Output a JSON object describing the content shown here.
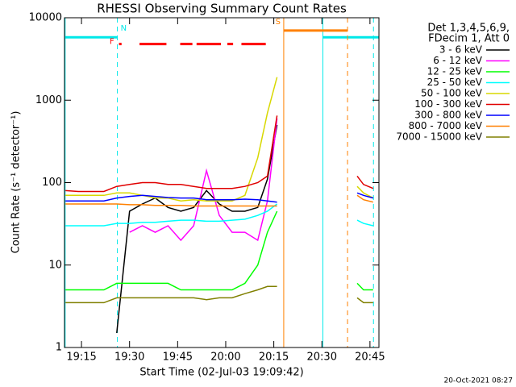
{
  "chart_data": {
    "type": "line",
    "title": "RHESSI Observing Summary Count Rates",
    "xlabel": "Start Time (02-Jul-03 19:09:42)",
    "ylabel": "Count Rate (s⁻¹ detector⁻¹)",
    "legend_header": [
      "Det 1,3,4,5,6,9,",
      "FDecim 1, Att 0"
    ],
    "footer": "20-Oct-2021 08:27",
    "log_y": true,
    "xlim": [
      1149.7,
      1247.8
    ],
    "ylim": [
      1,
      10000
    ],
    "xticks": [
      {
        "value": 1155,
        "label": "19:15"
      },
      {
        "value": 1170,
        "label": "19:30"
      },
      {
        "value": 1185,
        "label": "19:45"
      },
      {
        "value": 1200,
        "label": "20:00"
      },
      {
        "value": 1215,
        "label": "20:15"
      },
      {
        "value": 1230,
        "label": "20:30"
      },
      {
        "value": 1245,
        "label": "20:45"
      }
    ],
    "yticks": [
      1,
      10,
      100,
      1000,
      10000
    ],
    "x": [
      1150,
      1154,
      1158,
      1162,
      1166,
      1170,
      1174,
      1178,
      1182,
      1186,
      1190,
      1194,
      1198,
      1202,
      1206,
      1210,
      1213,
      1216,
      1228,
      1241,
      1243,
      1246
    ],
    "series": [
      {
        "name": "3 - 6 keV",
        "color": "#000000",
        "values": [
          null,
          null,
          null,
          null,
          1.5,
          45,
          55,
          65,
          50,
          45,
          50,
          80,
          55,
          45,
          45,
          50,
          110,
          500,
          null,
          null,
          null,
          null
        ]
      },
      {
        "name": "6 - 12 keV",
        "color": "#ff00ff",
        "values": [
          null,
          null,
          null,
          null,
          null,
          25,
          30,
          25,
          30,
          20,
          30,
          140,
          40,
          25,
          25,
          20,
          60,
          600,
          null,
          null,
          null,
          null
        ]
      },
      {
        "name": "12 - 25 keV",
        "color": "#00ff00",
        "values": [
          5,
          5,
          5,
          5,
          6,
          6,
          6,
          6,
          6,
          5,
          5,
          5,
          5,
          5,
          6,
          10,
          25,
          45,
          null,
          6,
          5,
          5
        ]
      },
      {
        "name": "25 - 50 keV",
        "color": "#00ffff",
        "values": [
          30,
          30,
          30,
          30,
          32,
          32,
          33,
          33,
          34,
          35,
          35,
          34,
          34,
          35,
          36,
          40,
          45,
          55,
          null,
          35,
          32,
          30
        ]
      },
      {
        "name": "50 - 100 keV",
        "color": "#d8d800",
        "values": [
          70,
          70,
          70,
          70,
          75,
          75,
          70,
          65,
          65,
          60,
          62,
          60,
          60,
          60,
          70,
          200,
          700,
          1900,
          null,
          90,
          75,
          65
        ]
      },
      {
        "name": "100 - 300 keV",
        "color": "#e00000",
        "values": [
          80,
          78,
          78,
          78,
          90,
          95,
          100,
          100,
          95,
          95,
          90,
          85,
          85,
          85,
          90,
          100,
          120,
          650,
          null,
          120,
          95,
          85
        ]
      },
      {
        "name": "300 - 800 keV",
        "color": "#0000ff",
        "values": [
          60,
          60,
          60,
          60,
          65,
          68,
          70,
          68,
          66,
          65,
          65,
          62,
          62,
          62,
          63,
          62,
          60,
          58,
          null,
          75,
          70,
          65
        ]
      },
      {
        "name": "800 - 7000 keV",
        "color": "#ff8000",
        "values": [
          55,
          55,
          55,
          55,
          55,
          54,
          54,
          53,
          53,
          53,
          52,
          52,
          52,
          52,
          52,
          52,
          52,
          52,
          null,
          70,
          62,
          58
        ]
      },
      {
        "name": "7000 - 15000 keV",
        "color": "#808000",
        "values": [
          3.5,
          3.5,
          3.5,
          3.5,
          4,
          4,
          4,
          4,
          4,
          4,
          4,
          3.8,
          4,
          4,
          4.5,
          5,
          5.5,
          5.5,
          null,
          4,
          3.5,
          3.5
        ]
      }
    ],
    "flags": [
      {
        "label": "N",
        "color": "#00e8e8",
        "level": 5800,
        "bars": [
          [
            1149.7,
            1166.2
          ],
          [
            1230.3,
            1247.8
          ]
        ],
        "solid": [
          1149.9,
          1230.3
        ],
        "dashed": [
          1166.2,
          1246.1
        ]
      },
      {
        "label": "F",
        "color": "#ff0000",
        "level": 4800,
        "bars": [
          [
            1166.7,
            1167.5
          ],
          [
            1173.1,
            1181.5
          ],
          [
            1185.8,
            1189.6
          ],
          [
            1190.9,
            1198.5
          ],
          [
            1200.5,
            1202.3
          ],
          [
            1204.9,
            1212.5
          ]
        ],
        "solid": [],
        "dashed": []
      },
      {
        "label": "S",
        "color": "#ff8000",
        "level": 7000,
        "bars": [
          [
            1218.1,
            1238
          ]
        ],
        "solid": [
          1218.1
        ],
        "dashed": [
          1238
        ]
      }
    ]
  }
}
